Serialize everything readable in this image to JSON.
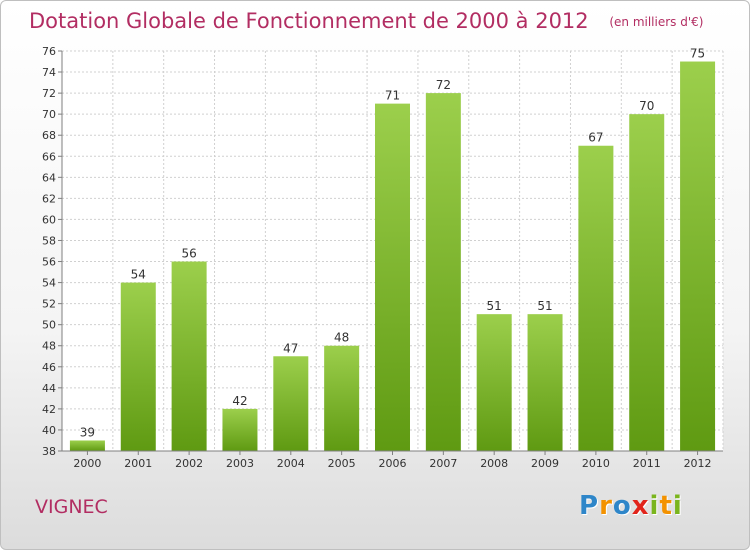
{
  "header": {
    "title": "Dotation Globale de Fonctionnement de 2000 à 2012",
    "unit": "(en milliers d'€)"
  },
  "footer": {
    "commune": "VIGNEC",
    "brand_letters": [
      {
        "char": "P",
        "color": "#2e86c9"
      },
      {
        "char": "r",
        "color": "#f39200"
      },
      {
        "char": "o",
        "color": "#2e86c9"
      },
      {
        "char": "x",
        "color": "#e1241b"
      },
      {
        "char": "i",
        "color": "#7ab51d"
      },
      {
        "char": "t",
        "color": "#f39200"
      },
      {
        "char": "i",
        "color": "#7ab51d"
      }
    ]
  },
  "colors": {
    "accent": "#b22d62",
    "bar_light": "#9ccf4c",
    "bar_dark": "#5f9a12",
    "grid": "#d0d0d0",
    "axis": "#7f7f7f"
  },
  "chart_data": {
    "type": "bar",
    "title": "Dotation Globale de Fonctionnement de 2000 à 2012",
    "subtitle": "(en milliers d'€)",
    "categories": [
      "2000",
      "2001",
      "2002",
      "2003",
      "2004",
      "2005",
      "2006",
      "2007",
      "2008",
      "2009",
      "2010",
      "2011",
      "2012"
    ],
    "values": [
      39,
      54,
      56,
      42,
      47,
      48,
      71,
      72,
      51,
      51,
      67,
      70,
      75
    ],
    "ylim": [
      38,
      76
    ],
    "ytick_step": 2,
    "grid": true,
    "xlabel": "",
    "ylabel": "",
    "data_labels": true
  }
}
